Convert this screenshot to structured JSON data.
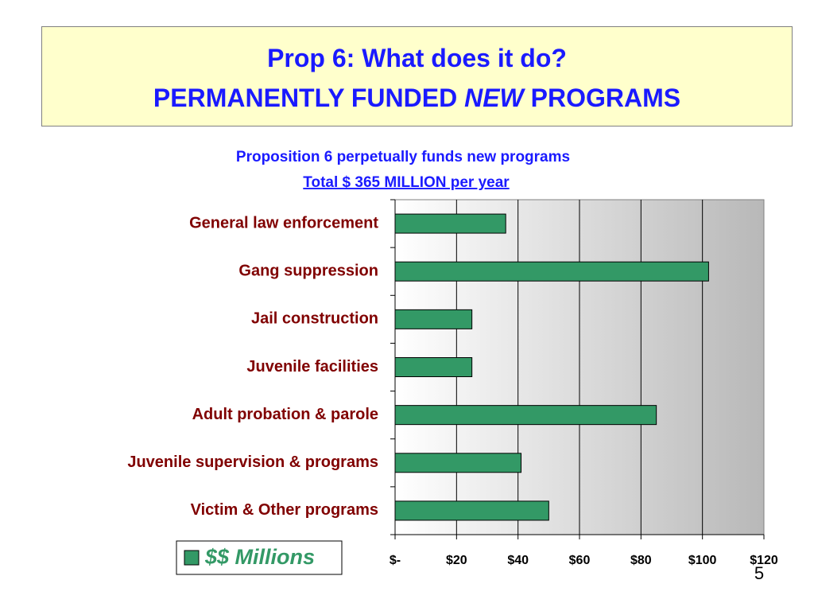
{
  "header": {
    "title_line1": "Prop 6:  What does it do?",
    "title_line2": [
      "PERMANENTLY FUNDED",
      "NEW",
      "PROGRAMS"
    ]
  },
  "page_number": "5",
  "chart_data": {
    "type": "hbar",
    "title": "Proposition 6 perpetually funds new programs",
    "subtitle": "Total $ 365 MILLION per year",
    "categories": [
      "General law enforcement",
      "Gang suppression",
      "Jail construction",
      "Juvenile facilities",
      "Adult probation & parole",
      "Juvenile supervision & programs",
      "Victim & Other programs"
    ],
    "series": [
      {
        "name": "$$ Millions",
        "color": "#339966",
        "values": [
          36,
          102,
          25,
          25,
          85,
          41,
          50
        ]
      }
    ],
    "xlim": [
      0,
      120
    ],
    "xticks": [
      {
        "value": 0,
        "label": "$-"
      },
      {
        "value": 20,
        "label": "$20"
      },
      {
        "value": 40,
        "label": "$40"
      },
      {
        "value": 60,
        "label": "$60"
      },
      {
        "value": 80,
        "label": "$80"
      },
      {
        "value": 100,
        "label": "$100"
      },
      {
        "value": 120,
        "label": "$120"
      }
    ],
    "grid": true,
    "legend": "bottom-left"
  }
}
